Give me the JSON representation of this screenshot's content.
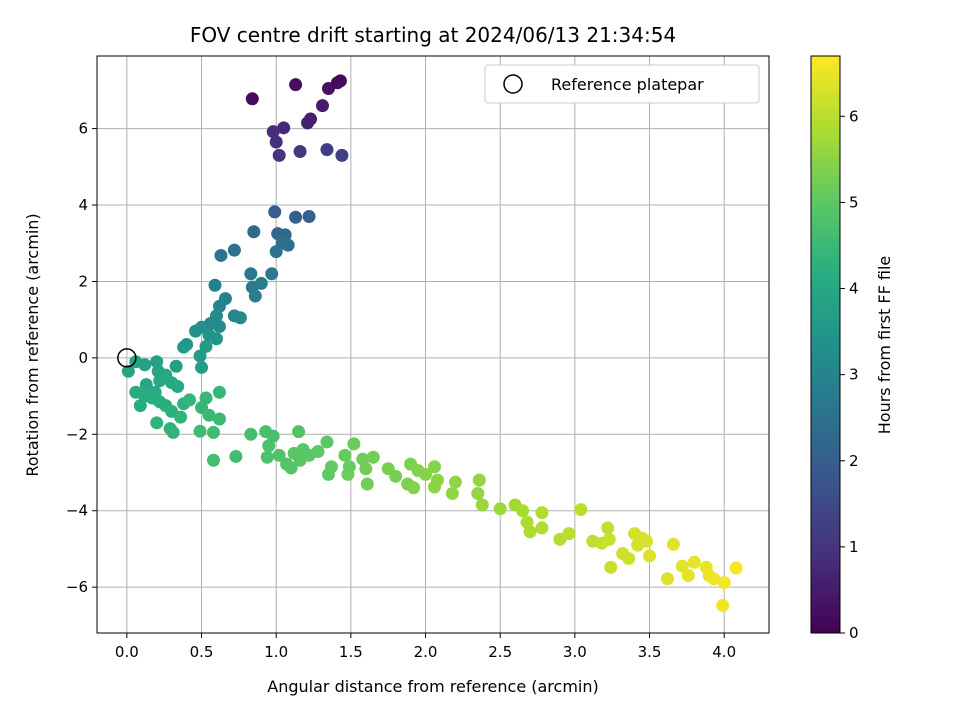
{
  "chart_data": {
    "type": "scatter",
    "title": "FOV centre drift starting at 2024/06/13 21:34:54",
    "xlabel": "Angular distance from reference (arcmin)",
    "ylabel": "Rotation from reference (arcmin)",
    "xlim": [
      -0.2,
      4.3
    ],
    "ylim": [
      -7.2,
      7.9
    ],
    "xticks": [
      0.0,
      0.5,
      1.0,
      1.5,
      2.0,
      2.5,
      3.0,
      3.5,
      4.0
    ],
    "xtick_labels": [
      "0.0",
      "0.5",
      "1.0",
      "1.5",
      "2.0",
      "2.5",
      "3.0",
      "3.5",
      "4.0"
    ],
    "yticks": [
      -6,
      -4,
      -2,
      0,
      2,
      4,
      6
    ],
    "ytick_labels": [
      "−6",
      "−4",
      "−2",
      "0",
      "2",
      "4",
      "6"
    ],
    "grid": true,
    "legend": {
      "placement": "top-right",
      "entries": [
        "Reference platepar"
      ]
    },
    "reference_point": {
      "x": 0.0,
      "y": 0.0
    },
    "colorbar": {
      "label": "Hours from first FF file",
      "colormap": "viridis",
      "range": [
        0,
        6.7
      ],
      "ticks": [
        0,
        1,
        2,
        3,
        4,
        5,
        6
      ],
      "tick_labels": [
        "0",
        "1",
        "2",
        "3",
        "4",
        "5",
        "6"
      ]
    },
    "series": [
      {
        "columns": [
          "x",
          "y",
          "hours"
        ],
        "points": [
          [
            0.84,
            6.78,
            0.2
          ],
          [
            1.13,
            7.15,
            0.25
          ],
          [
            1.35,
            7.05,
            0.3
          ],
          [
            1.43,
            7.25,
            0.15
          ],
          [
            1.41,
            7.2,
            0.2
          ],
          [
            1.31,
            6.6,
            0.5
          ],
          [
            1.23,
            6.25,
            0.55
          ],
          [
            1.21,
            6.15,
            0.6
          ],
          [
            1.05,
            6.02,
            0.75
          ],
          [
            0.98,
            5.92,
            0.85
          ],
          [
            1.0,
            5.65,
            0.9
          ],
          [
            1.02,
            5.3,
            1.0
          ],
          [
            1.16,
            5.4,
            1.1
          ],
          [
            1.34,
            5.45,
            1.2
          ],
          [
            1.44,
            5.3,
            1.3
          ],
          [
            0.99,
            3.82,
            2.0
          ],
          [
            1.13,
            3.68,
            2.05
          ],
          [
            1.22,
            3.7,
            2.1
          ],
          [
            1.01,
            3.25,
            2.2
          ],
          [
            1.06,
            3.22,
            2.25
          ],
          [
            0.85,
            3.3,
            2.3
          ],
          [
            1.08,
            2.95,
            2.35
          ],
          [
            1.04,
            3.0,
            2.4
          ],
          [
            0.72,
            2.82,
            2.5
          ],
          [
            1.0,
            2.78,
            2.55
          ],
          [
            0.63,
            2.68,
            2.6
          ],
          [
            0.83,
            2.2,
            2.65
          ],
          [
            0.97,
            2.2,
            2.7
          ],
          [
            0.84,
            1.85,
            2.75
          ],
          [
            0.9,
            1.95,
            2.8
          ],
          [
            0.86,
            1.62,
            2.85
          ],
          [
            0.59,
            1.9,
            2.9
          ],
          [
            0.66,
            1.55,
            2.95
          ],
          [
            0.62,
            1.35,
            3.0
          ],
          [
            0.72,
            1.1,
            3.05
          ],
          [
            0.76,
            1.05,
            3.1
          ],
          [
            0.6,
            1.1,
            3.15
          ],
          [
            0.56,
            0.9,
            3.2
          ],
          [
            0.62,
            0.82,
            3.25
          ],
          [
            0.5,
            0.8,
            3.3
          ],
          [
            0.46,
            0.7,
            3.35
          ],
          [
            0.55,
            0.6,
            3.4
          ],
          [
            0.6,
            0.5,
            3.45
          ],
          [
            0.4,
            0.35,
            3.5
          ],
          [
            0.38,
            0.28,
            3.55
          ],
          [
            0.53,
            0.3,
            3.6
          ],
          [
            0.49,
            0.05,
            3.65
          ],
          [
            0.5,
            -0.25,
            3.7
          ],
          [
            0.33,
            -0.22,
            3.75
          ],
          [
            0.2,
            -0.1,
            3.8
          ],
          [
            0.06,
            -0.1,
            3.85
          ],
          [
            0.12,
            -0.18,
            3.85
          ],
          [
            0.01,
            -0.35,
            3.9
          ],
          [
            0.21,
            -0.35,
            3.9
          ],
          [
            0.26,
            -0.45,
            3.95
          ],
          [
            0.13,
            -0.7,
            3.95
          ],
          [
            0.22,
            -0.6,
            4.0
          ],
          [
            0.3,
            -0.65,
            4.0
          ],
          [
            0.34,
            -0.75,
            4.05
          ],
          [
            0.19,
            -0.9,
            4.05
          ],
          [
            0.06,
            -0.9,
            4.1
          ],
          [
            0.12,
            -1.0,
            4.1
          ],
          [
            0.09,
            -1.25,
            4.15
          ],
          [
            0.17,
            -1.05,
            4.15
          ],
          [
            0.22,
            -1.15,
            4.2
          ],
          [
            0.26,
            -1.25,
            4.2
          ],
          [
            0.3,
            -1.4,
            4.25
          ],
          [
            0.38,
            -1.2,
            4.25
          ],
          [
            0.2,
            -1.7,
            4.3
          ],
          [
            0.29,
            -1.85,
            4.3
          ],
          [
            0.31,
            -1.95,
            4.35
          ],
          [
            0.36,
            -1.55,
            4.35
          ],
          [
            0.42,
            -1.1,
            4.4
          ],
          [
            0.5,
            -1.3,
            4.4
          ],
          [
            0.53,
            -1.05,
            4.45
          ],
          [
            0.62,
            -0.9,
            4.45
          ],
          [
            0.55,
            -1.5,
            4.5
          ],
          [
            0.62,
            -1.6,
            4.5
          ],
          [
            0.58,
            -1.95,
            4.55
          ],
          [
            0.49,
            -1.92,
            4.55
          ],
          [
            0.58,
            -2.68,
            4.6
          ],
          [
            0.73,
            -2.58,
            4.6
          ],
          [
            0.83,
            -2.0,
            4.65
          ],
          [
            0.93,
            -1.93,
            4.7
          ],
          [
            0.98,
            -2.05,
            4.7
          ],
          [
            0.95,
            -2.3,
            4.75
          ],
          [
            0.94,
            -2.6,
            4.75
          ],
          [
            1.02,
            -2.55,
            4.8
          ],
          [
            1.07,
            -2.78,
            4.8
          ],
          [
            1.1,
            -2.88,
            4.85
          ],
          [
            1.15,
            -1.93,
            4.85
          ],
          [
            1.12,
            -2.5,
            4.9
          ],
          [
            1.16,
            -2.68,
            4.9
          ],
          [
            1.18,
            -2.4,
            4.95
          ],
          [
            1.22,
            -2.55,
            4.95
          ],
          [
            1.28,
            -2.45,
            5.0
          ],
          [
            1.34,
            -2.2,
            5.0
          ],
          [
            1.37,
            -2.85,
            5.05
          ],
          [
            1.35,
            -3.05,
            5.05
          ],
          [
            1.46,
            -2.55,
            5.1
          ],
          [
            1.49,
            -2.85,
            5.1
          ],
          [
            1.48,
            -3.05,
            5.15
          ],
          [
            1.52,
            -2.25,
            5.15
          ],
          [
            1.58,
            -2.65,
            5.2
          ],
          [
            1.6,
            -2.9,
            5.2
          ],
          [
            1.65,
            -2.6,
            5.25
          ],
          [
            1.61,
            -3.3,
            5.25
          ],
          [
            1.75,
            -2.9,
            5.3
          ],
          [
            1.8,
            -3.1,
            5.3
          ],
          [
            1.88,
            -3.3,
            5.35
          ],
          [
            1.9,
            -2.78,
            5.35
          ],
          [
            1.95,
            -2.95,
            5.4
          ],
          [
            1.92,
            -3.4,
            5.4
          ],
          [
            2.0,
            -3.05,
            5.45
          ],
          [
            2.06,
            -2.85,
            5.45
          ],
          [
            2.08,
            -3.2,
            5.5
          ],
          [
            2.06,
            -3.38,
            5.5
          ],
          [
            2.18,
            -3.55,
            5.55
          ],
          [
            2.2,
            -3.25,
            5.55
          ],
          [
            2.35,
            -3.55,
            5.6
          ],
          [
            2.36,
            -3.2,
            5.6
          ],
          [
            2.38,
            -3.85,
            5.65
          ],
          [
            2.5,
            -3.95,
            5.7
          ],
          [
            2.6,
            -3.85,
            5.75
          ],
          [
            2.65,
            -4.0,
            5.8
          ],
          [
            2.68,
            -4.3,
            5.85
          ],
          [
            2.7,
            -4.55,
            5.85
          ],
          [
            2.78,
            -4.05,
            5.9
          ],
          [
            2.78,
            -4.45,
            5.9
          ],
          [
            2.9,
            -4.75,
            5.95
          ],
          [
            2.96,
            -4.6,
            6.0
          ],
          [
            3.04,
            -3.97,
            6.0
          ],
          [
            3.12,
            -4.8,
            6.05
          ],
          [
            3.18,
            -4.85,
            6.1
          ],
          [
            3.22,
            -4.45,
            6.1
          ],
          [
            3.23,
            -4.75,
            6.15
          ],
          [
            3.24,
            -5.48,
            6.15
          ],
          [
            3.32,
            -5.12,
            6.2
          ],
          [
            3.36,
            -5.25,
            6.2
          ],
          [
            3.4,
            -4.6,
            6.25
          ],
          [
            3.42,
            -4.9,
            6.25
          ],
          [
            3.45,
            -4.72,
            6.3
          ],
          [
            3.48,
            -4.8,
            6.3
          ],
          [
            3.5,
            -5.18,
            6.35
          ],
          [
            3.62,
            -5.78,
            6.35
          ],
          [
            3.66,
            -4.88,
            6.4
          ],
          [
            3.72,
            -5.45,
            6.4
          ],
          [
            3.76,
            -5.7,
            6.45
          ],
          [
            3.8,
            -5.35,
            6.45
          ],
          [
            3.88,
            -5.48,
            6.5
          ],
          [
            3.9,
            -5.7,
            6.5
          ],
          [
            3.93,
            -5.78,
            6.55
          ],
          [
            3.99,
            -6.48,
            6.55
          ],
          [
            4.0,
            -5.88,
            6.6
          ],
          [
            4.08,
            -5.5,
            6.65
          ]
        ]
      }
    ]
  }
}
